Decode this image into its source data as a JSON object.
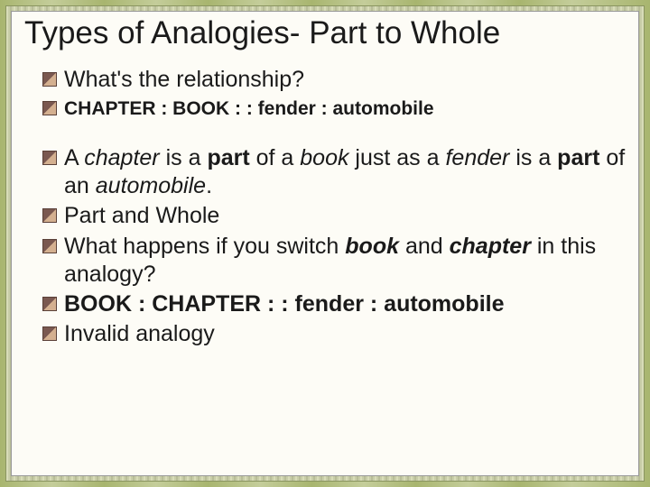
{
  "title": "Types of Analogies- Part to Whole",
  "bullets": {
    "b1": "What's the relationship?",
    "b2": "CHAPTER : BOOK : : fender : automobile",
    "b3_1": "A ",
    "b3_2": "chapter",
    "b3_3": " is a ",
    "b3_4": "part",
    "b3_5": " of a ",
    "b3_6": "book",
    "b3_7": " just as a ",
    "b3_8": "fender",
    "b3_9": " is a ",
    "b3_10": "part",
    "b3_11": " of an ",
    "b3_12": "automobile",
    "b3_13": ".",
    "b4": "Part and Whole",
    "b5_1": "What happens if you switch ",
    "b5_2": "book",
    "b5_3": " and ",
    "b5_4": "chapter",
    "b5_5": " in this analogy?",
    "b6": "BOOK : CHAPTER : : fender : automobile",
    "b7": "Invalid analogy"
  },
  "styling": {
    "slide_width": 720,
    "slide_height": 540,
    "background_color": "#fdfcf6",
    "border_pattern_colors": [
      "#a8b56f",
      "#c4cd9a",
      "#d8dcb8",
      "#b8bd98"
    ],
    "title_fontsize": 35,
    "title_color": "#1a1a1a",
    "body_lvl1_fontsize": 25,
    "body_lvl2_fontsize": 21,
    "bullet_icon_colors": [
      "#7a5850",
      "#d4b090"
    ],
    "bullet_icon_size": 14,
    "font_family": "Arial"
  }
}
